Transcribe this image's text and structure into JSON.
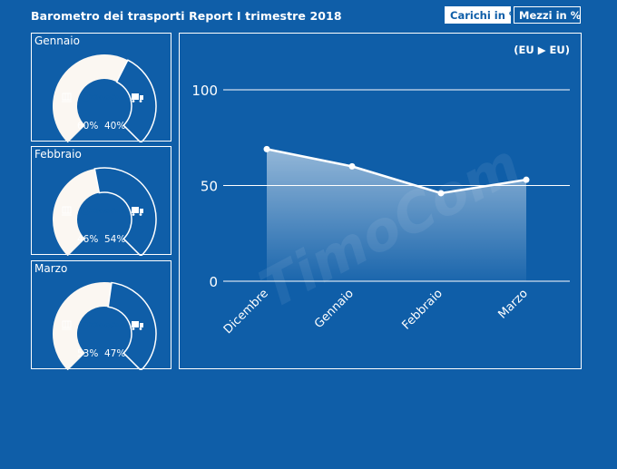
{
  "header": {
    "title": "Barometro dei trasporti Report I trimestre 2018",
    "tab_loads": "Carichi in %",
    "tab_vehicles": "Mezzi in %"
  },
  "gauges": [
    {
      "month": "Gennaio",
      "loads_pct": 60,
      "vehicles_pct": 40,
      "loads_label": "60%",
      "vehicles_label": "40%",
      "brand": "TimoCom"
    },
    {
      "month": "Febbraio",
      "loads_pct": 46,
      "vehicles_pct": 54,
      "loads_label": "46%",
      "vehicles_label": "54%",
      "brand": "TimoCom"
    },
    {
      "month": "Marzo",
      "loads_pct": 53,
      "vehicles_pct": 47,
      "loads_label": "53%",
      "vehicles_label": "47%",
      "brand": "TimoCom"
    }
  ],
  "chart_data": {
    "type": "area",
    "route_label": "(EU ▶ EU)",
    "categories": [
      "Dicembre",
      "Gennaio",
      "Febbraio",
      "Marzo"
    ],
    "values": [
      69,
      60,
      46,
      53
    ],
    "ylim": [
      0,
      100
    ],
    "yticks": [
      "100",
      "50",
      "0"
    ],
    "grid": true,
    "watermark": "TimoCom"
  },
  "colors": {
    "background": "#0f5ea8",
    "foreground": "#ffffff",
    "gauge_loads": "#fbf7f2"
  }
}
